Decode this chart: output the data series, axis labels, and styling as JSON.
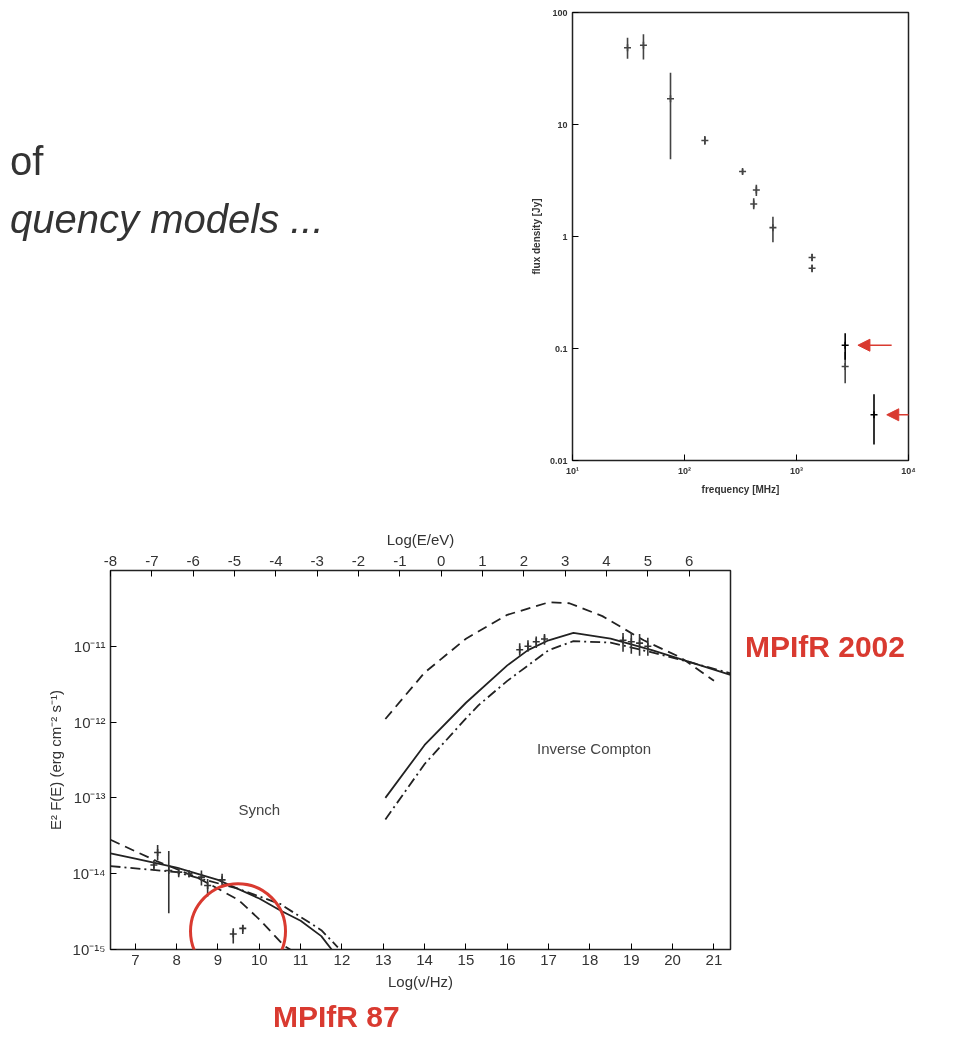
{
  "chart_data": [
    {
      "type": "other",
      "annotations": [
        "of",
        "quency models ..."
      ]
    },
    {
      "type": "scatter",
      "xlabel": "frequency [MHz]",
      "ylabel": "flux density [Jy]",
      "log": "xy",
      "xlim": [
        10,
        10000
      ],
      "ylim": [
        0.01,
        100
      ],
      "xticks": [
        {
          "value": 10,
          "label": "10¹"
        },
        {
          "value": 100,
          "label": "10²"
        },
        {
          "value": 1000,
          "label": "10³"
        },
        {
          "value": 10000,
          "label": "10⁴"
        }
      ],
      "yticks": [
        100,
        10,
        1,
        0.1,
        0.01
      ],
      "marker": "cross",
      "series": [
        {
          "color": "#444444",
          "x": [
            31,
            43,
            75,
            152,
            330,
            438,
            415,
            616,
            1377,
            1377,
            2720
          ],
          "values": [
            48.5,
            51,
            17,
            7.2,
            3.8,
            2.6,
            1.95,
            1.2,
            0.65,
            0.52,
            0.069
          ],
          "errors": [
            [
              38.6,
              59.5
            ],
            [
              38,
              64
            ],
            [
              4.9,
              29
            ],
            [
              6.6,
              7.9
            ],
            [
              3.6,
              4.0
            ],
            [
              2.3,
              2.9
            ],
            [
              1.75,
              2.2
            ],
            [
              0.89,
              1.5
            ],
            [
              0.6,
              0.7
            ],
            [
              0.48,
              0.56
            ],
            [
              0.049,
              0.093
            ]
          ]
        },
        {
          "color": "#000000",
          "x": [
            2720,
            4920
          ],
          "values": [
            0.107,
            0.0256
          ],
          "errors": [
            [
              0.0795,
              0.137
            ],
            [
              0.0139,
              0.039
            ]
          ]
        }
      ]
    },
    {
      "type": "line",
      "xlabel": "Log(ν/Hz)",
      "x2label": "Log(E/eV)",
      "ylabel": "E² F(E) (erg cm⁻² s⁻¹)",
      "log": "y",
      "xlim": [
        6.4,
        21.4
      ],
      "xticks": [
        7,
        8,
        9,
        10,
        11,
        12,
        13,
        14,
        15,
        16,
        17,
        18,
        19,
        20,
        21
      ],
      "x2lim": [
        -8.0,
        7.0
      ],
      "x2ticks": [
        -8,
        -7,
        -6,
        -5,
        -4,
        -3,
        -2,
        -1,
        0,
        1,
        2,
        3,
        4,
        5,
        6
      ],
      "ylim": [
        1e-15,
        1e-10
      ],
      "yticks": [
        {
          "value": 1e-11,
          "label": "10⁻¹¹"
        },
        {
          "value": 1e-12,
          "label": "10⁻¹²"
        },
        {
          "value": 1e-13,
          "label": "10⁻¹³"
        },
        {
          "value": 1e-14,
          "label": "10⁻¹⁴"
        },
        {
          "value": 1e-15,
          "label": "10⁻¹⁵"
        }
      ],
      "series": [
        {
          "color": "#222222",
          "line_style": "solid",
          "x": [
            6.4,
            7,
            8,
            9,
            10,
            10.5,
            11,
            11.5,
            11.75
          ],
          "values": [
            1.86e-14,
            1.58e-14,
            1.2e-14,
            8.3e-15,
            4.7e-15,
            3.3e-15,
            2.4e-15,
            1.5e-15,
            1e-15
          ]
        },
        {
          "color": "#222222",
          "line_style": "dashed",
          "x": [
            6.4,
            7.5,
            8.5,
            9.5,
            10,
            10.6,
            10.75
          ],
          "values": [
            2.8e-14,
            1.48e-14,
            8.9e-15,
            4.5e-15,
            2.5e-15,
            1.12e-15,
            1e-15
          ]
        },
        {
          "color": "#222222",
          "line_style": "dashdot",
          "x": [
            6.4,
            8,
            9.5,
            10.5,
            11.5,
            11.9
          ],
          "values": [
            1.26e-14,
            1.05e-14,
            6.3e-15,
            4e-15,
            1.8e-15,
            1.07e-15
          ]
        },
        {
          "color": "#222222",
          "line_style": "solid",
          "x": [
            13.05,
            14,
            15,
            16,
            16.5,
            17,
            17.6,
            18.5,
            19.5,
            20.5,
            21.4
          ],
          "values": [
            1e-13,
            5e-13,
            1.8e-12,
            5.6e-12,
            8.9e-12,
            1.2e-11,
            1.5e-11,
            1.26e-11,
            8.9e-12,
            6e-12,
            4.2e-12
          ]
        },
        {
          "color": "#222222",
          "line_style": "dashed",
          "x": [
            13.05,
            14,
            15,
            16,
            17,
            17.5,
            18.3,
            19.3,
            20.2,
            21.0
          ],
          "values": [
            1.1e-12,
            4.5e-12,
            1.26e-11,
            2.6e-11,
            3.8e-11,
            3.7e-11,
            2.5e-11,
            1.2e-11,
            7.1e-12,
            3.5e-12
          ]
        },
        {
          "color": "#222222",
          "line_style": "dashdot",
          "x": [
            13.05,
            14,
            15,
            15.3,
            16,
            17,
            17.6,
            18.5,
            19.5,
            20.5,
            21.4
          ],
          "values": [
            5.2e-14,
            2.8e-13,
            1.12e-12,
            1.66e-12,
            3.5e-12,
            8.9e-12,
            1.17e-11,
            1.12e-11,
            8.3e-12,
            6e-12,
            4.4e-12
          ]
        },
        {
          "type": "scatter",
          "marker": "cross",
          "color": "#333333",
          "x": [
            7.45,
            7.54,
            7.81,
            8.05,
            8.3,
            8.6,
            8.75,
            9.1,
            16.3,
            16.5,
            16.7,
            16.9,
            18.8,
            19.0,
            19.2,
            19.4
          ],
          "values": [
            1.3e-14,
            1.9e-14,
            1.1e-14,
            1.05e-14,
            1e-14,
            9e-15,
            7e-15,
            8.3e-15,
            9e-12,
            1e-11,
            1.15e-11,
            1.25e-11,
            1.2e-11,
            1.15e-11,
            1.1e-11,
            1e-11
          ],
          "errors": [
            [
              1.1e-14,
              1.5e-14
            ],
            [
              1.5e-14,
              2.4e-14
            ],
            [
              3e-15,
              2e-14
            ],
            [
              9e-15,
              1.2e-14
            ],
            [
              9e-15,
              1.1e-14
            ],
            [
              7e-15,
              1.1e-14
            ],
            [
              5e-15,
              8.5e-15
            ],
            [
              7e-15,
              1e-14
            ],
            [
              7.5e-12,
              1.1e-11
            ],
            [
              8.5e-12,
              1.2e-11
            ],
            [
              9.5e-12,
              1.35e-11
            ],
            [
              1.05e-11,
              1.45e-11
            ],
            [
              8.5e-12,
              1.5e-11
            ],
            [
              8e-12,
              1.5e-11
            ],
            [
              7.5e-12,
              1.45e-11
            ],
            [
              7.5e-12,
              1.3e-11
            ]
          ]
        },
        {
          "type": "scatter",
          "marker": "cross",
          "color": "#333333",
          "x": [
            9.37,
            9.6
          ],
          "values": [
            1.6e-15,
            1.9e-15
          ],
          "errors": [
            [
              1.2e-15,
              1.9e-15
            ],
            [
              1.6e-15,
              2.1e-15
            ]
          ]
        }
      ],
      "annotations": [
        "Synch",
        "Inverse Compton",
        "MPIfR 87",
        "MPIfR 2002"
      ]
    }
  ]
}
